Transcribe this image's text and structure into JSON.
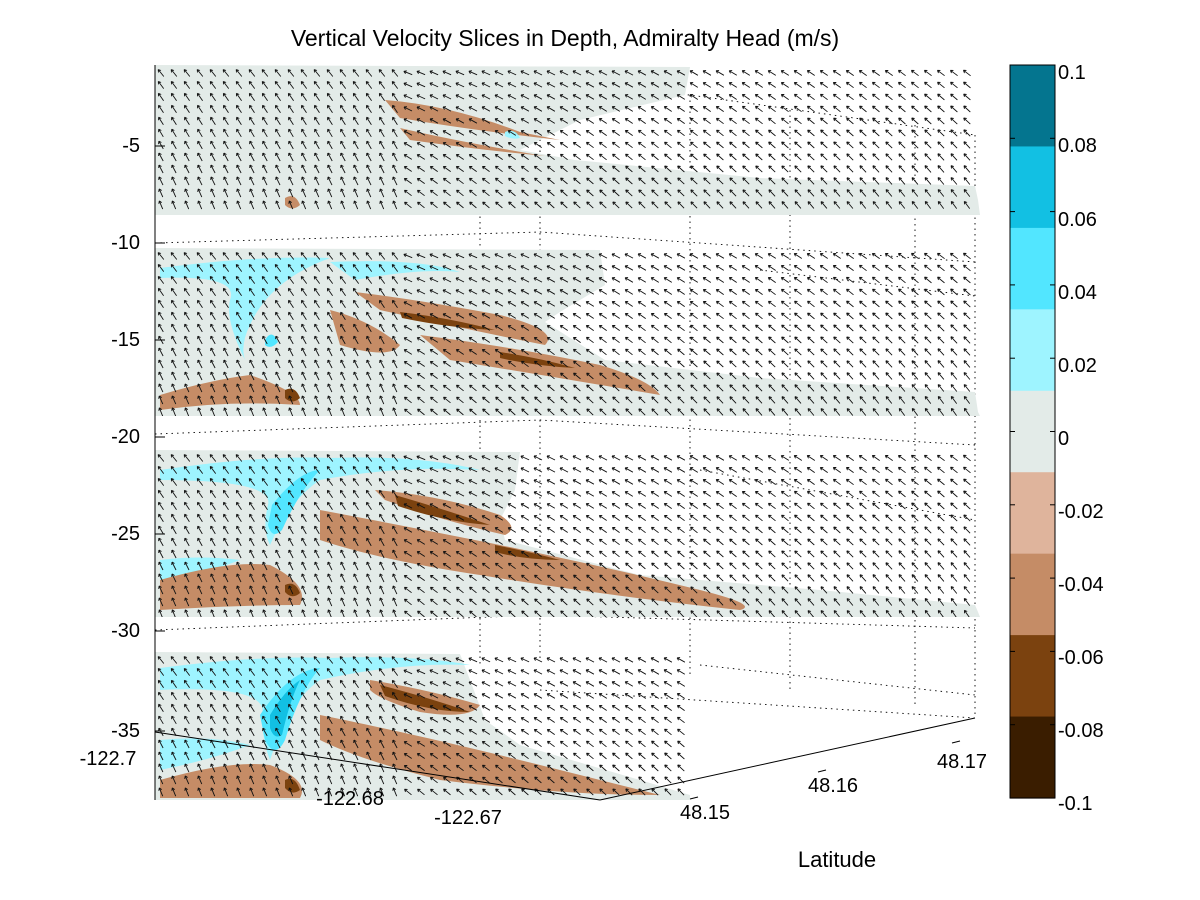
{
  "chart_data": {
    "type": "heatmap",
    "title": "Vertical Velocity Slices in Depth, Admiralty Head (m/s)",
    "ylabel_right": "Latitude",
    "z_axis": {
      "ticks": [
        -5,
        -10,
        -15,
        -20,
        -25,
        -30,
        -35
      ],
      "tick_labels": [
        "-5",
        "-10",
        "-15",
        "-20",
        "-25",
        "-30",
        "-35"
      ]
    },
    "x_axis": {
      "tick_labels": [
        "-122.7",
        "-122.68",
        "-122.67"
      ]
    },
    "latitude_axis": {
      "tick_labels": [
        "48.15",
        "48.16",
        "48.17"
      ]
    },
    "slices": [
      {
        "depth": -5
      },
      {
        "depth": -15
      },
      {
        "depth": -25
      },
      {
        "depth": -35
      }
    ],
    "colorbar": {
      "min": -0.1,
      "max": 0.1,
      "tick_labels": [
        "0.1",
        "0.08",
        "0.06",
        "0.04",
        "0.02",
        "0",
        "-0.02",
        "-0.04",
        "-0.06",
        "-0.08",
        "-0.1"
      ],
      "colors": [
        "#04758f",
        "#12c0e3",
        "#52e6ff",
        "#9ef4ff",
        "#e3ebe8",
        "#dfb49c",
        "#c58c66",
        "#7b420f",
        "#3a1d00"
      ]
    },
    "grid": "on (dotted)"
  }
}
